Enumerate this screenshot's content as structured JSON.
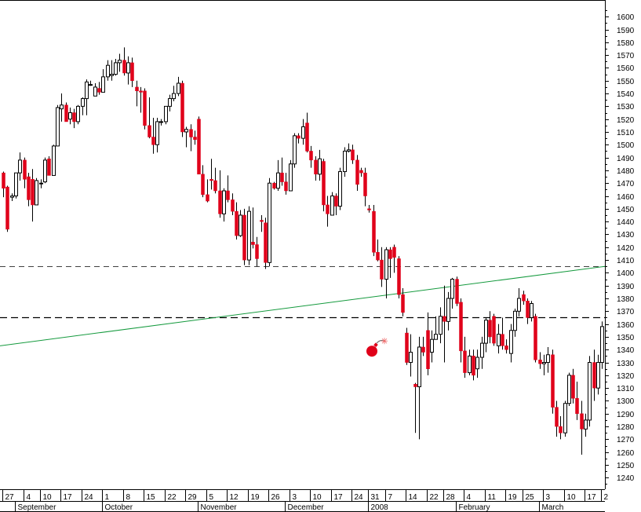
{
  "chart_data": {
    "type": "candlestick",
    "title": "",
    "xlabel": "",
    "ylabel": "",
    "ylim": [
      1231,
      1613
    ],
    "y_ticks": [
      1240,
      1250,
      1260,
      1270,
      1280,
      1290,
      1300,
      1310,
      1320,
      1330,
      1340,
      1350,
      1360,
      1370,
      1380,
      1390,
      1400,
      1410,
      1420,
      1430,
      1440,
      1450,
      1460,
      1470,
      1480,
      1490,
      1500,
      1510,
      1520,
      1530,
      1540,
      1550,
      1560,
      1570,
      1580,
      1590,
      1600
    ],
    "grid": false,
    "legend": "none",
    "colors": {
      "up": "#ffffff",
      "down": "#e0001a",
      "outline": "#000000",
      "trendline": "#159a3e",
      "level": "#000000",
      "bomb": "#e0001a"
    },
    "day_labels": [
      {
        "text": "27",
        "day": 0
      },
      {
        "text": "4",
        "day": 5
      },
      {
        "text": "10",
        "day": 9
      },
      {
        "text": "17",
        "day": 14
      },
      {
        "text": "24",
        "day": 19
      },
      {
        "text": "1",
        "day": 24
      },
      {
        "text": "8",
        "day": 29
      },
      {
        "text": "15",
        "day": 34
      },
      {
        "text": "22",
        "day": 39
      },
      {
        "text": "29",
        "day": 44
      },
      {
        "text": "5",
        "day": 49
      },
      {
        "text": "12",
        "day": 54
      },
      {
        "text": "19",
        "day": 59
      },
      {
        "text": "26",
        "day": 64
      },
      {
        "text": "3",
        "day": 69
      },
      {
        "text": "10",
        "day": 74
      },
      {
        "text": "17",
        "day": 79
      },
      {
        "text": "24",
        "day": 84
      },
      {
        "text": "31",
        "day": 88
      },
      {
        "text": "7",
        "day": 92
      },
      {
        "text": "14",
        "day": 97
      },
      {
        "text": "22",
        "day": 102
      },
      {
        "text": "28",
        "day": 106
      },
      {
        "text": "4",
        "day": 111
      },
      {
        "text": "11",
        "day": 116
      },
      {
        "text": "19",
        "day": 121
      },
      {
        "text": "25",
        "day": 125
      },
      {
        "text": "3",
        "day": 130
      },
      {
        "text": "10",
        "day": 135
      },
      {
        "text": "17",
        "day": 140
      },
      {
        "text": "2",
        "day": 144
      }
    ],
    "month_labels": [
      {
        "text": "September",
        "day": 3
      },
      {
        "text": "October",
        "day": 24
      },
      {
        "text": "November",
        "day": 47
      },
      {
        "text": "December",
        "day": 68
      },
      {
        "text": "2008",
        "day": 88
      },
      {
        "text": "February",
        "day": 109
      },
      {
        "text": "March",
        "day": 129
      }
    ],
    "horizontal_levels": [
      {
        "value": 1405,
        "style": "dashed-light"
      },
      {
        "value": 1365,
        "style": "dashed-heavy"
      }
    ],
    "trendline": {
      "from": {
        "day": 0,
        "value": 1343
      },
      "to": {
        "day": 145,
        "value": 1405
      }
    },
    "annotation": {
      "type": "bomb-icon",
      "day": 90,
      "value": 1340
    },
    "candles": [
      [
        1478,
        1479,
        1459,
        1466
      ],
      [
        1467,
        1468,
        1432,
        1434
      ],
      [
        1459,
        1462,
        1456,
        1460
      ],
      [
        1460,
        1478,
        1458,
        1478
      ],
      [
        1478,
        1494,
        1472,
        1488
      ],
      [
        1488,
        1490,
        1466,
        1473
      ],
      [
        1475,
        1478,
        1452,
        1457
      ],
      [
        1473,
        1481,
        1440,
        1453
      ],
      [
        1453,
        1474,
        1453,
        1472
      ],
      [
        1470,
        1473,
        1466,
        1470
      ],
      [
        1471,
        1490,
        1470,
        1488
      ],
      [
        1489,
        1491,
        1476,
        1476
      ],
      [
        1476,
        1500,
        1476,
        1499
      ],
      [
        1499,
        1531,
        1499,
        1529
      ],
      [
        1528,
        1540,
        1518,
        1531
      ],
      [
        1531,
        1533,
        1518,
        1518
      ],
      [
        1520,
        1529,
        1516,
        1525
      ],
      [
        1525,
        1528,
        1513,
        1518
      ],
      [
        1518,
        1531,
        1516,
        1530
      ],
      [
        1530,
        1537,
        1523,
        1536
      ],
      [
        1536,
        1551,
        1523,
        1549
      ],
      [
        1547,
        1550,
        1546,
        1547
      ],
      [
        1538,
        1548,
        1538,
        1545
      ],
      [
        1544,
        1549,
        1539,
        1541
      ],
      [
        1541,
        1559,
        1541,
        1553
      ],
      [
        1553,
        1566,
        1550,
        1562
      ],
      [
        1554,
        1566,
        1550,
        1555
      ],
      [
        1555,
        1567,
        1554,
        1564
      ],
      [
        1564,
        1571,
        1557,
        1566
      ],
      [
        1566,
        1576,
        1554,
        1556
      ],
      [
        1556,
        1569,
        1547,
        1564
      ],
      [
        1564,
        1568,
        1545,
        1550
      ],
      [
        1545,
        1550,
        1530,
        1542
      ],
      [
        1542,
        1545,
        1525,
        1541
      ],
      [
        1542,
        1544,
        1512,
        1515
      ],
      [
        1515,
        1537,
        1505,
        1506
      ],
      [
        1506,
        1521,
        1493,
        1500
      ],
      [
        1500,
        1521,
        1494,
        1518
      ],
      [
        1518,
        1520,
        1515,
        1518
      ],
      [
        1518,
        1530,
        1516,
        1530
      ],
      [
        1530,
        1539,
        1526,
        1536
      ],
      [
        1536,
        1546,
        1534,
        1540
      ],
      [
        1540,
        1553,
        1538,
        1548
      ],
      [
        1548,
        1550,
        1506,
        1510
      ],
      [
        1510,
        1514,
        1498,
        1512
      ],
      [
        1512,
        1516,
        1495,
        1506
      ],
      [
        1506,
        1511,
        1500,
        1504
      ],
      [
        1520,
        1522,
        1477,
        1477
      ],
      [
        1477,
        1484,
        1459,
        1461
      ],
      [
        1461,
        1473,
        1455,
        1456
      ],
      [
        1473,
        1489,
        1465,
        1472
      ],
      [
        1472,
        1482,
        1462,
        1464
      ],
      [
        1464,
        1480,
        1443,
        1446
      ],
      [
        1446,
        1466,
        1440,
        1464
      ],
      [
        1464,
        1476,
        1455,
        1457
      ],
      [
        1457,
        1462,
        1445,
        1448
      ],
      [
        1448,
        1455,
        1426,
        1429
      ],
      [
        1429,
        1449,
        1428,
        1445
      ],
      [
        1445,
        1450,
        1406,
        1410
      ],
      [
        1410,
        1452,
        1406,
        1448
      ],
      [
        1424,
        1451,
        1419,
        1422
      ],
      [
        1422,
        1428,
        1405,
        1411
      ],
      [
        1441,
        1445,
        1432,
        1440
      ],
      [
        1439,
        1443,
        1403,
        1408
      ],
      [
        1408,
        1474,
        1405,
        1470
      ],
      [
        1470,
        1471,
        1465,
        1466
      ],
      [
        1466,
        1488,
        1464,
        1478
      ],
      [
        1478,
        1490,
        1468,
        1471
      ],
      [
        1471,
        1478,
        1461,
        1464
      ],
      [
        1464,
        1488,
        1464,
        1485
      ],
      [
        1485,
        1509,
        1482,
        1507
      ],
      [
        1507,
        1509,
        1501,
        1505
      ],
      [
        1505,
        1520,
        1500,
        1514
      ],
      [
        1517,
        1525,
        1494,
        1495
      ],
      [
        1495,
        1499,
        1482,
        1488
      ],
      [
        1488,
        1491,
        1472,
        1477
      ],
      [
        1477,
        1496,
        1472,
        1489
      ],
      [
        1487,
        1489,
        1448,
        1453
      ],
      [
        1453,
        1460,
        1436,
        1446
      ],
      [
        1445,
        1463,
        1445,
        1460
      ],
      [
        1460,
        1462,
        1445,
        1452
      ],
      [
        1452,
        1482,
        1449,
        1479
      ],
      [
        1479,
        1498,
        1475,
        1495
      ],
      [
        1495,
        1501,
        1494,
        1496
      ],
      [
        1496,
        1500,
        1485,
        1488
      ],
      [
        1488,
        1492,
        1464,
        1469
      ],
      [
        1480,
        1482,
        1475,
        1478
      ],
      [
        1478,
        1482,
        1452,
        1460
      ],
      [
        1450,
        1453,
        1447,
        1449
      ],
      [
        1448,
        1453,
        1413,
        1416
      ],
      [
        1416,
        1426,
        1409,
        1410
      ],
      [
        1410,
        1420,
        1389,
        1395
      ],
      [
        1395,
        1420,
        1380,
        1418
      ],
      [
        1418,
        1420,
        1396,
        1411
      ],
      [
        1420,
        1422,
        1400,
        1412
      ],
      [
        1411,
        1413,
        1380,
        1383
      ],
      [
        1383,
        1388,
        1366,
        1369
      ],
      [
        1353,
        1357,
        1328,
        1330
      ],
      [
        1330,
        1352,
        1319,
        1338
      ],
      [
        1313,
        1314,
        1275,
        1311
      ],
      [
        1311,
        1350,
        1270,
        1342
      ],
      [
        1342,
        1350,
        1335,
        1338
      ],
      [
        1355,
        1369,
        1320,
        1325
      ],
      [
        1338,
        1355,
        1330,
        1348
      ],
      [
        1348,
        1366,
        1348,
        1352
      ],
      [
        1352,
        1373,
        1345,
        1366
      ],
      [
        1366,
        1390,
        1330,
        1362
      ],
      [
        1362,
        1385,
        1355,
        1380
      ],
      [
        1380,
        1396,
        1372,
        1395
      ],
      [
        1395,
        1397,
        1374,
        1376
      ],
      [
        1377,
        1380,
        1330,
        1339
      ],
      [
        1339,
        1350,
        1318,
        1322
      ],
      [
        1322,
        1340,
        1320,
        1335
      ],
      [
        1335,
        1340,
        1316,
        1320
      ],
      [
        1325,
        1340,
        1318,
        1334
      ],
      [
        1334,
        1350,
        1325,
        1345
      ],
      [
        1345,
        1365,
        1338,
        1363
      ],
      [
        1363,
        1370,
        1345,
        1350
      ],
      [
        1366,
        1368,
        1343,
        1345
      ],
      [
        1343,
        1360,
        1337,
        1352
      ],
      [
        1352,
        1365,
        1340,
        1343
      ],
      [
        1343,
        1348,
        1337,
        1340
      ],
      [
        1337,
        1360,
        1330,
        1355
      ],
      [
        1355,
        1372,
        1350,
        1370
      ],
      [
        1370,
        1388,
        1366,
        1380
      ],
      [
        1383,
        1386,
        1375,
        1378
      ],
      [
        1378,
        1380,
        1360,
        1365
      ],
      [
        1365,
        1378,
        1362,
        1376
      ],
      [
        1366,
        1368,
        1330,
        1332
      ],
      [
        1332,
        1338,
        1325,
        1329
      ],
      [
        1329,
        1336,
        1320,
        1330
      ],
      [
        1330,
        1342,
        1322,
        1336
      ],
      [
        1336,
        1340,
        1290,
        1295
      ],
      [
        1295,
        1300,
        1272,
        1280
      ],
      [
        1280,
        1288,
        1270,
        1275
      ],
      [
        1275,
        1300,
        1272,
        1298
      ],
      [
        1298,
        1322,
        1296,
        1320
      ],
      [
        1320,
        1325,
        1298,
        1302
      ],
      [
        1302,
        1315,
        1285,
        1290
      ],
      [
        1290,
        1300,
        1258,
        1278
      ],
      [
        1278,
        1290,
        1272,
        1285
      ],
      [
        1285,
        1335,
        1280,
        1330
      ],
      [
        1330,
        1340,
        1300,
        1310
      ],
      [
        1310,
        1336,
        1305,
        1330
      ],
      [
        1330,
        1362,
        1325,
        1358
      ]
    ]
  }
}
